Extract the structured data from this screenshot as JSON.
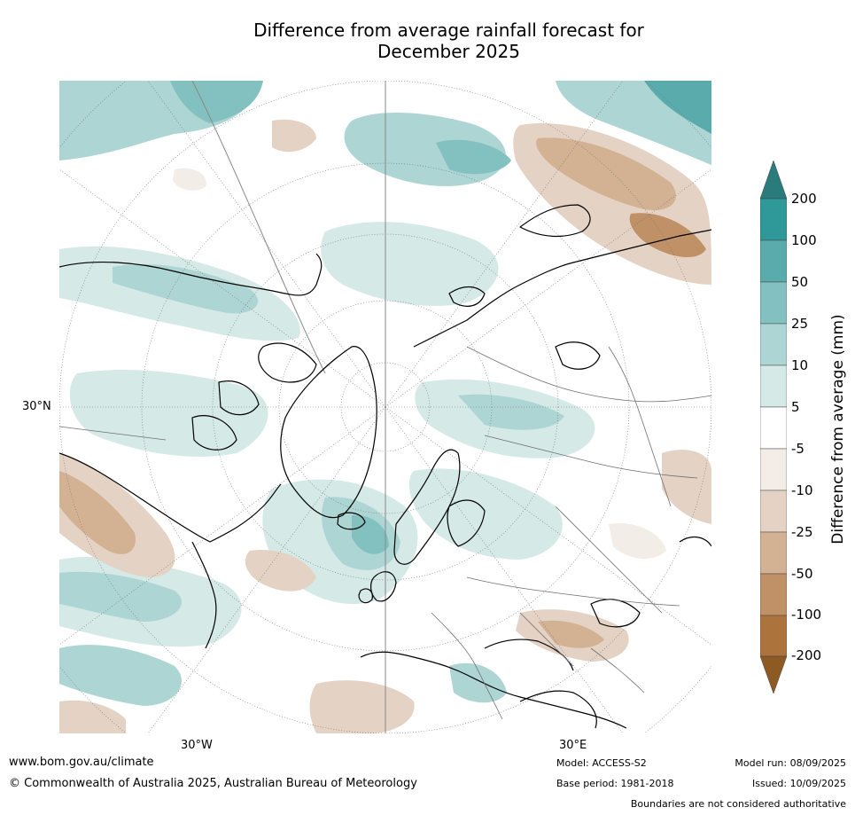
{
  "title_line1": "Difference from average rainfall forecast for",
  "title_line2": "December 2025",
  "grid_labels": {
    "lat_30n": "30°N",
    "lon_30w": "30°W",
    "lon_30e": "30°E"
  },
  "legend": {
    "title": "Difference from average (mm)",
    "ticks": [
      "200",
      "100",
      "50",
      "25",
      "10",
      "5",
      "-5",
      "-10",
      "-25",
      "-50",
      "-100",
      "-200"
    ],
    "colors": {
      "above_200": "#2a7b7b",
      "100_200": "#2f9898",
      "50_100": "#5aabab",
      "25_50": "#82c1bf",
      "10_25": "#acd5d3",
      "5_10": "#d5e9e7",
      "neutral": "#ffffff",
      "m5_m10": "#f2ede7",
      "m10_m25": "#e4d3c4",
      "m25_m50": "#d2b293",
      "m50_m100": "#c09067",
      "m100_m200": "#ad733d",
      "below_m200": "#8e5a24"
    }
  },
  "footer": {
    "website": "www.bom.gov.au/climate",
    "copyright": "© Commonwealth of Australia 2025, Australian Bureau of Meteorology",
    "model": "Model: ACCESS-S2",
    "base_period": "Base period: 1981-2018",
    "model_run": "Model run: 08/09/2025",
    "issued": "Issued: 10/09/2025",
    "disclaimer": "Boundaries are not considered authoritative"
  }
}
